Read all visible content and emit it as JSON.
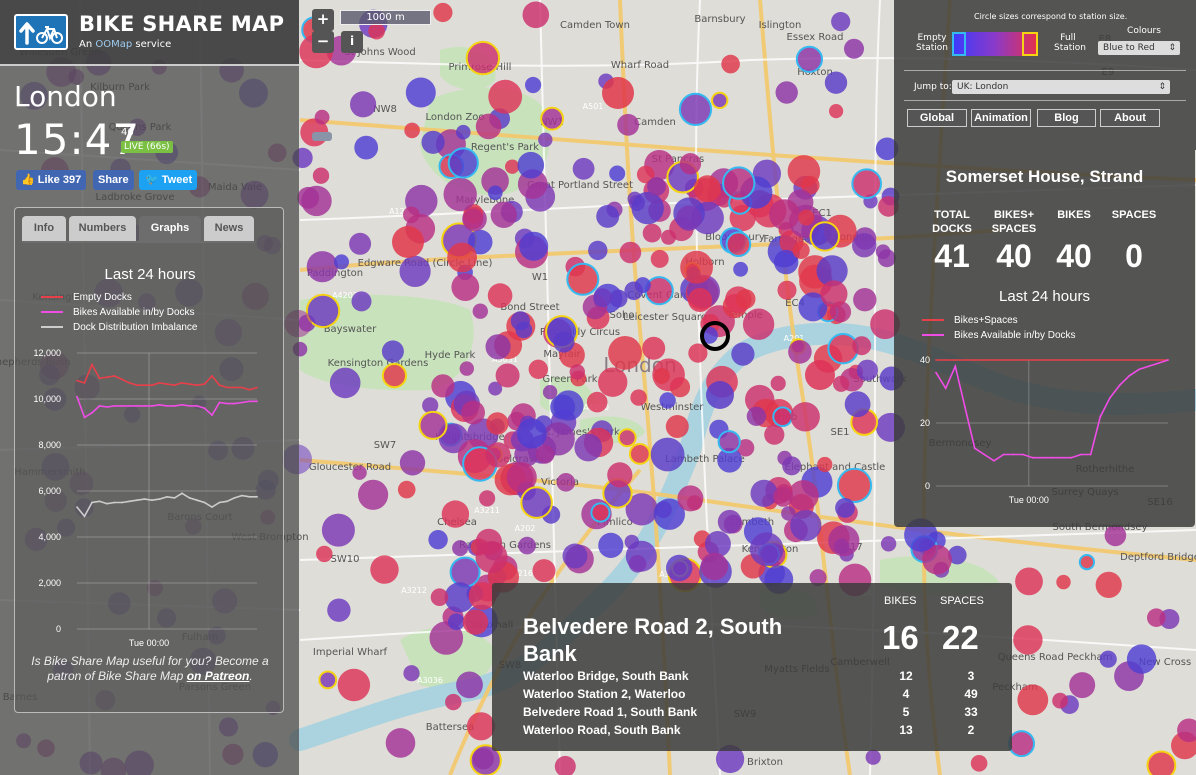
{
  "map": {
    "zoom_in": "+",
    "zoom_out": "−",
    "info": "i",
    "scale": "1000 m",
    "place_labels": [
      {
        "text": "Camden Town"
      },
      {
        "text": "Barnsbury"
      },
      {
        "text": "Islington"
      },
      {
        "text": "Essex Road"
      },
      {
        "text": "Hoxton"
      },
      {
        "text": "Primrose Hill"
      },
      {
        "text": "Wharf Road"
      },
      {
        "text": "NW1"
      },
      {
        "text": "Camden"
      },
      {
        "text": "NW8"
      },
      {
        "text": "London Zoo"
      },
      {
        "text": "St Pancras"
      },
      {
        "text": "Marylebone"
      },
      {
        "text": "Great Portland Street"
      },
      {
        "text": "Regent's Park"
      },
      {
        "text": "Bloomsbury"
      },
      {
        "text": "Farringdon"
      },
      {
        "text": "EC1"
      },
      {
        "text": "City of London"
      },
      {
        "text": "Paddington"
      },
      {
        "text": "Edgware Road (Circle Line)"
      },
      {
        "text": "W1"
      },
      {
        "text": "Holborn"
      },
      {
        "text": "Covent Garden"
      },
      {
        "text": "Soho"
      },
      {
        "text": "Leicester Square"
      },
      {
        "text": "EC4"
      },
      {
        "text": "Bayswater"
      },
      {
        "text": "Bond Street"
      },
      {
        "text": "Piccadilly Circus"
      },
      {
        "text": "Temple"
      },
      {
        "text": "Mayfair"
      },
      {
        "text": "London"
      },
      {
        "text": "Kensington Gardens"
      },
      {
        "text": "Hyde Park"
      },
      {
        "text": "Green Park"
      },
      {
        "text": "Southwark"
      },
      {
        "text": "Westminster"
      },
      {
        "text": "Waterloo"
      },
      {
        "text": "St. James's Park"
      },
      {
        "text": "SE1"
      },
      {
        "text": "SW7"
      },
      {
        "text": "Knightsbridge"
      },
      {
        "text": "Belgravia"
      },
      {
        "text": "Lambeth Palace"
      },
      {
        "text": "Elephant and Castle"
      },
      {
        "text": "Gloucester Road"
      },
      {
        "text": "Victoria"
      },
      {
        "text": "Chelsea"
      },
      {
        "text": "Pimlico"
      },
      {
        "text": "Lambeth"
      },
      {
        "text": "Kennington"
      },
      {
        "text": "SE17"
      },
      {
        "text": "SW10"
      },
      {
        "text": "Ranelagh Gardens"
      },
      {
        "text": "Camberwell"
      },
      {
        "text": "Imperial Wharf"
      },
      {
        "text": "Vauxhall"
      },
      {
        "text": "SW8"
      },
      {
        "text": "Battersea"
      },
      {
        "text": "SW9"
      },
      {
        "text": "Myatts Fields"
      },
      {
        "text": "Queens Road Peckham"
      },
      {
        "text": "Peckham"
      },
      {
        "text": "Brixton"
      },
      {
        "text": "Rotherhithe"
      },
      {
        "text": "Bermondsey"
      },
      {
        "text": "Surrey Quays"
      },
      {
        "text": "Deptford Bridge"
      },
      {
        "text": "New Cross"
      },
      {
        "text": "St Johns Wood"
      },
      {
        "text": "E9"
      },
      {
        "text": "E8"
      },
      {
        "text": "SE16"
      },
      {
        "text": "South Bermondsey"
      },
      {
        "text": "Willesden Green"
      },
      {
        "text": "Kilburn Park"
      },
      {
        "text": "Queens Park"
      },
      {
        "text": "Maida Vale"
      },
      {
        "text": "Ladbroke Grove"
      },
      {
        "text": "Shepherds Bush"
      },
      {
        "text": "Hammersmith"
      },
      {
        "text": "Fulham"
      },
      {
        "text": "Barons Court"
      },
      {
        "text": "West Brompton"
      },
      {
        "text": "Parsons Green"
      },
      {
        "text": "Barnes"
      },
      {
        "text": "Kensington"
      },
      {
        "text": "A501"
      },
      {
        "text": "A201"
      },
      {
        "text": "A3212"
      },
      {
        "text": "A3205"
      },
      {
        "text": "A3036"
      },
      {
        "text": "A3211"
      },
      {
        "text": "A202"
      },
      {
        "text": "A3216"
      },
      {
        "text": "A4202"
      },
      {
        "text": "B214"
      },
      {
        "text": "A3031"
      },
      {
        "text": "A1200"
      },
      {
        "text": "A4200"
      }
    ]
  },
  "left": {
    "brand": "BIKE SHARE MAP",
    "tagline_prefix": "An ",
    "tagline_link": "OOMap",
    "tagline_suffix": " service",
    "city": "London",
    "time": "15:47",
    "seconds": "46",
    "live": "LIVE (66s)",
    "social": {
      "like": "Like 397",
      "share": "Share",
      "tweet": "Tweet"
    },
    "tabs": [
      {
        "label": "Info"
      },
      {
        "label": "Numbers"
      },
      {
        "label": "Graphs"
      },
      {
        "label": "News"
      }
    ],
    "chart_title": "Last 24 hours",
    "legend": [
      {
        "label": "Empty Docks",
        "color": "#e8404a"
      },
      {
        "label": "Bikes Available in/by Docks",
        "color": "#f04ce6"
      },
      {
        "label": "Dock Distribution Imbalance",
        "color": "#cccccc"
      }
    ],
    "promo_text": "Is Bike Share Map useful for you? Become a patron of Bike Share Map ",
    "promo_link": "on Patreon",
    "promo_end": "."
  },
  "right": {
    "circle_note": "Circle sizes correspond to station size.",
    "empty_label": "Empty Station",
    "full_label": "Full Station",
    "colours_label": "Colours",
    "colours_value": "Blue to Red",
    "jump_label": "Jump to:",
    "jump_value": "UK: London",
    "buttons": [
      {
        "label": "Global"
      },
      {
        "label": "Animation"
      },
      {
        "label": "Blog"
      },
      {
        "label": "About"
      }
    ]
  },
  "station": {
    "name": "Somerset House, Strand",
    "headers": [
      "TOTAL DOCKS",
      "BIKES+ SPACES",
      "BIKES",
      "SPACES"
    ],
    "values": [
      "41",
      "40",
      "40",
      "0"
    ],
    "chart_title": "Last 24 hours",
    "legend": [
      {
        "label": "Bikes+Spaces",
        "color": "#e8404a"
      },
      {
        "label": "Bikes Available in/by Docks",
        "color": "#f04ce6"
      }
    ]
  },
  "nearby": {
    "bikes_header": "BIKES",
    "spaces_header": "SPACES",
    "name": "Belvedere Road 2, South Bank",
    "bikes": "16",
    "spaces": "22",
    "rows": [
      {
        "name": "Waterloo Bridge, South Bank",
        "bikes": "12",
        "spaces": "3"
      },
      {
        "name": "Waterloo Station 2, Waterloo",
        "bikes": "4",
        "spaces": "49"
      },
      {
        "name": "Belvedere Road 1, South Bank",
        "bikes": "5",
        "spaces": "33"
      },
      {
        "name": "Waterloo Road, South Bank",
        "bikes": "13",
        "spaces": "2"
      }
    ]
  },
  "chart_data": [
    {
      "type": "line",
      "title": "Last 24 hours",
      "x_tick_labels": [
        "Tue 00:00"
      ],
      "y_tick_labels": [
        "12,000",
        "10,000",
        "8,000",
        "6,000",
        "4,000",
        "2,000",
        "0"
      ],
      "ylim": [
        0,
        12000
      ],
      "x": [
        0,
        1,
        2,
        3,
        4,
        5,
        6,
        7,
        8,
        9,
        10,
        11,
        12,
        13,
        14,
        15,
        16,
        17,
        18,
        19,
        20,
        21,
        22,
        23,
        24
      ],
      "series": [
        {
          "name": "Empty Docks",
          "color": "#e8404a",
          "values": [
            10800,
            10700,
            11500,
            10900,
            10950,
            11000,
            10850,
            10700,
            10600,
            10600,
            10600,
            10700,
            10650,
            10600,
            10700,
            10650,
            10600,
            10650,
            11000,
            10600,
            10500,
            10500,
            10500,
            10400,
            10500
          ]
        },
        {
          "name": "Bikes Available in/by Docks",
          "color": "#f04ce6",
          "values": [
            10100,
            9200,
            9400,
            9700,
            9650,
            9700,
            9700,
            9700,
            9700,
            9700,
            9700,
            9750,
            9700,
            9700,
            9750,
            9700,
            9700,
            9600,
            9300,
            9850,
            9800,
            9800,
            9850,
            9900,
            9900
          ]
        },
        {
          "name": "Dock Distribution Imbalance",
          "color": "#cccccc",
          "values": [
            5300,
            4900,
            5500,
            5550,
            5450,
            5500,
            5500,
            5550,
            5600,
            5650,
            5600,
            5650,
            5750,
            5700,
            5900,
            5700,
            5600,
            5500,
            5300,
            5500,
            5550,
            5700,
            5800,
            5750,
            5750
          ]
        }
      ]
    },
    {
      "type": "line",
      "title": "Last 24 hours",
      "x_tick_labels": [
        "Tue 00:00"
      ],
      "y_tick_labels": [
        "40",
        "20",
        "0"
      ],
      "ylim": [
        0,
        40
      ],
      "x": [
        0,
        1,
        2,
        3,
        4,
        5,
        6,
        7,
        8,
        9,
        10,
        11,
        12,
        13,
        14,
        15,
        16,
        17,
        18,
        19,
        20,
        21,
        22,
        23,
        24
      ],
      "series": [
        {
          "name": "Bikes+Spaces",
          "color": "#e8404a",
          "values": [
            40,
            40,
            40,
            40,
            40,
            40,
            40,
            40,
            40,
            40,
            40,
            40,
            40,
            40,
            40,
            40,
            40,
            40,
            40,
            40,
            40,
            40,
            40,
            40,
            40
          ]
        },
        {
          "name": "Bikes Available in/by Docks",
          "color": "#f04ce6",
          "values": [
            36,
            31,
            38,
            25,
            12,
            10,
            8,
            10,
            10,
            10,
            9,
            9,
            9,
            9,
            9,
            10,
            10,
            22,
            28,
            32,
            35,
            37,
            38,
            39,
            40
          ]
        }
      ]
    }
  ]
}
